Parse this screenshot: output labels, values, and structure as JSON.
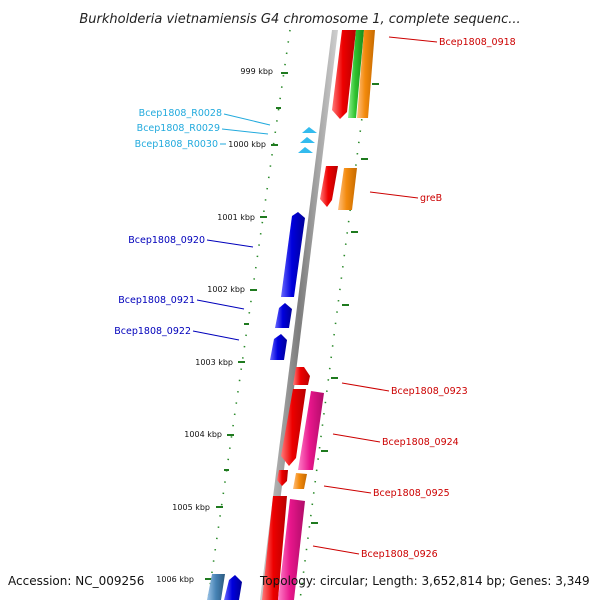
{
  "title": "Burkholderia vietnamiensis G4 chromosome 1, complete sequenc...",
  "footer": {
    "accession": "Accession: NC_009256",
    "topology": "Topology: circular; Length: 3,652,814 bp; Genes: 3,349"
  },
  "colors": {
    "backbone": "#8c8c8c",
    "tick": "#1f7a1f",
    "red": "#ee0000",
    "orange": "#f38a0c",
    "green": "#2ec22e",
    "pink": "#e8168c",
    "blue": "#0000dd",
    "steelblue": "#4682b4",
    "cyan": "#33bbee",
    "label_red": "#cc0000",
    "label_blue": "#0000bb",
    "label_cyan": "#22aadd"
  },
  "ruler_labels": [
    "999 kbp",
    "1000 kbp",
    "1001 kbp",
    "1002 kbp",
    "1003 kbp",
    "1004 kbp",
    "1005 kbp",
    "1006 kbp"
  ],
  "gene_labels": {
    "g0918": "Bcep1808_0918",
    "greB": "greB",
    "g0923": "Bcep1808_0923",
    "g0924": "Bcep1808_0924",
    "g0925": "Bcep1808_0925",
    "g0926": "Bcep1808_0926",
    "g0920": "Bcep1808_0920",
    "g0921": "Bcep1808_0921",
    "g0922": "Bcep1808_0922",
    "r0028": "Bcep1808_R0028",
    "r0029": "Bcep1808_R0029",
    "r0030": "Bcep1808_R0030"
  }
}
